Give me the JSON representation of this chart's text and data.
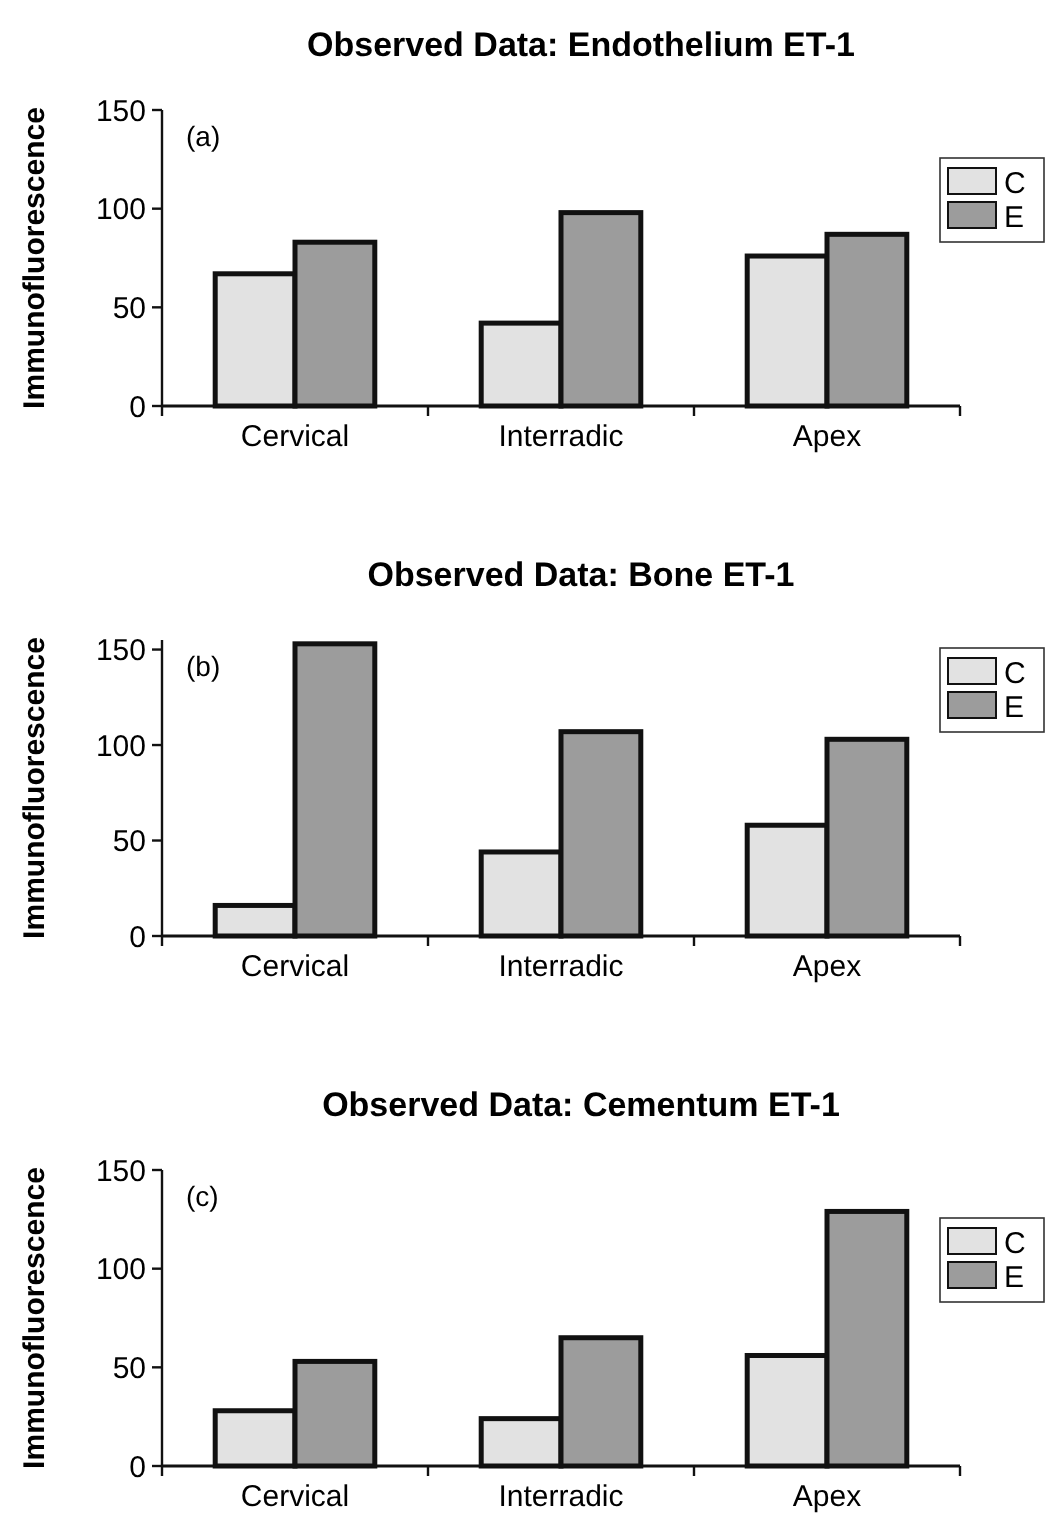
{
  "chart_data": [
    {
      "type": "bar",
      "title": "Observed Data: Endothelium ET-1",
      "ylabel": "Immunofluorescence",
      "annotations": [
        "(a)"
      ],
      "categories": [
        "Cervical",
        "Interradic",
        "Apex"
      ],
      "series": [
        {
          "name": "C",
          "color": "#e2e2e2",
          "values": [
            67,
            42,
            76
          ]
        },
        {
          "name": "E",
          "color": "#9c9c9c",
          "values": [
            83,
            98,
            87
          ]
        }
      ],
      "ylim": [
        0,
        150
      ],
      "yticks": [
        0,
        50,
        100,
        150
      ],
      "grid": false,
      "legend": "right"
    },
    {
      "type": "bar",
      "title": "Observed Data: Bone ET-1",
      "ylabel": "Immunofluorescence",
      "annotations": [
        "(b)"
      ],
      "categories": [
        "Cervical",
        "Interradic",
        "Apex"
      ],
      "series": [
        {
          "name": "C",
          "color": "#e2e2e2",
          "values": [
            16,
            44,
            58
          ]
        },
        {
          "name": "E",
          "color": "#9c9c9c",
          "values": [
            153,
            107,
            103
          ]
        }
      ],
      "ylim": [
        0,
        155
      ],
      "yticks": [
        0,
        50,
        100,
        150
      ],
      "grid": false,
      "legend": "top right"
    },
    {
      "type": "bar",
      "title": "Observed Data: Cementum ET-1",
      "ylabel": "Immunofluorescence",
      "annotations": [
        "(c)"
      ],
      "categories": [
        "Cervical",
        "Interradic",
        "Apex"
      ],
      "series": [
        {
          "name": "C",
          "color": "#e2e2e2",
          "values": [
            28,
            24,
            56
          ]
        },
        {
          "name": "E",
          "color": "#9c9c9c",
          "values": [
            53,
            65,
            129
          ]
        }
      ],
      "ylim": [
        0,
        150
      ],
      "yticks": [
        0,
        50,
        100,
        150
      ],
      "grid": false,
      "legend": "right"
    }
  ]
}
